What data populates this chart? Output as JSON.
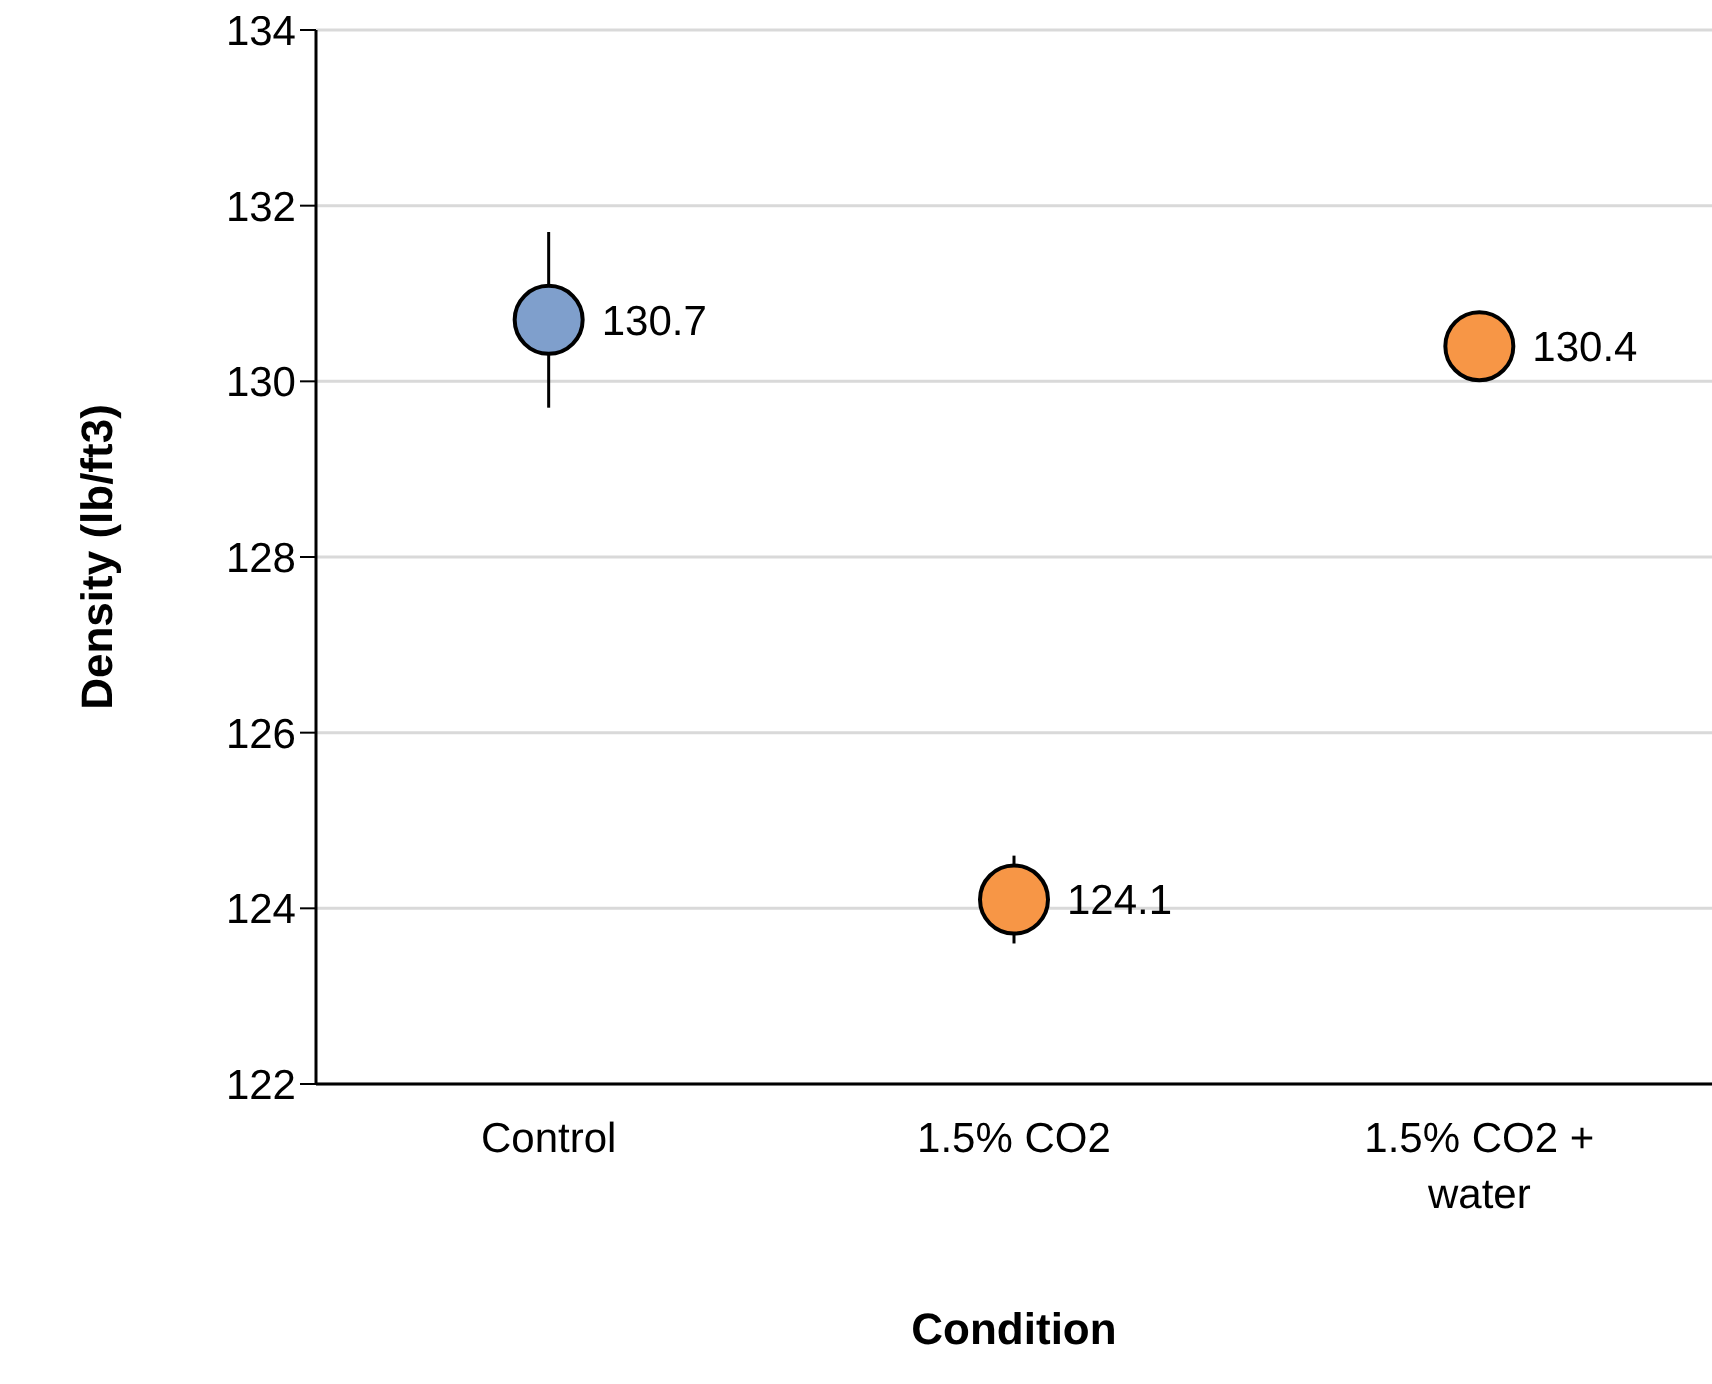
{
  "chart_data": {
    "type": "scatter",
    "xlabel": "Condition",
    "ylabel": "Density (lb/ft3)",
    "categories": [
      "Control",
      "1.5% CO2",
      "1.5% CO2 + water"
    ],
    "values": [
      130.7,
      124.1,
      130.4
    ],
    "colors": [
      "#7f9fcc",
      "#f79646",
      "#f79646"
    ],
    "errors": [
      1.0,
      0.5,
      null
    ],
    "ylim": [
      122,
      134
    ],
    "yticks": [
      122,
      124,
      126,
      128,
      130,
      132,
      134
    ],
    "grid": "y",
    "data_labels": true,
    "marker": "circle",
    "legend": false
  }
}
